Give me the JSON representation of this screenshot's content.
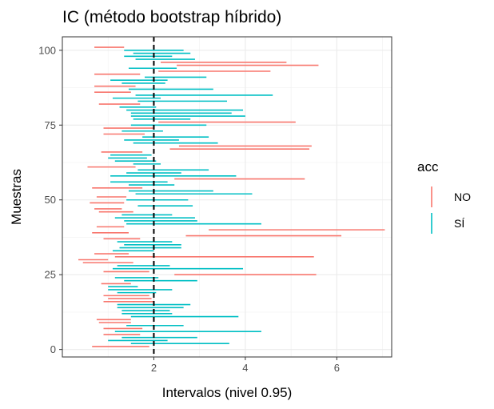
{
  "chart_data": {
    "type": "interval",
    "title": "IC (método bootstrap híbrido)",
    "xlabel": "Intervalos (nivel 0.95)",
    "ylabel": "Muestras",
    "xlim": [
      0.0,
      7.2
    ],
    "ylim": [
      -2.5,
      104.5
    ],
    "x_ticks": [
      2,
      4,
      6
    ],
    "y_ticks": [
      0,
      25,
      50,
      75,
      100
    ],
    "reference_line": 2,
    "grid": true,
    "legend": {
      "title": "acc",
      "position": "right",
      "entries": [
        {
          "label": "NO",
          "color": "#F8766D"
        },
        {
          "label": "SÍ",
          "color": "#00BFC4"
        }
      ]
    },
    "intervals": [
      {
        "y": 1,
        "lo": 0.65,
        "hi": 1.9,
        "acc": "NO"
      },
      {
        "y": 2,
        "lo": 1.5,
        "hi": 3.65,
        "acc": "SÍ"
      },
      {
        "y": 3,
        "lo": 1.0,
        "hi": 2.3,
        "acc": "SÍ"
      },
      {
        "y": 4,
        "lo": 1.3,
        "hi": 2.95,
        "acc": "SÍ"
      },
      {
        "y": 5,
        "lo": 0.9,
        "hi": 1.7,
        "acc": "NO"
      },
      {
        "y": 6,
        "lo": 1.15,
        "hi": 4.35,
        "acc": "SÍ"
      },
      {
        "y": 7,
        "lo": 0.9,
        "hi": 1.75,
        "acc": "NO"
      },
      {
        "y": 8,
        "lo": 1.4,
        "hi": 2.65,
        "acc": "SÍ"
      },
      {
        "y": 9,
        "lo": 0.8,
        "hi": 1.5,
        "acc": "NO"
      },
      {
        "y": 10,
        "lo": 0.75,
        "hi": 1.5,
        "acc": "NO"
      },
      {
        "y": 11,
        "lo": 1.5,
        "hi": 3.85,
        "acc": "SÍ"
      },
      {
        "y": 12,
        "lo": 1.3,
        "hi": 2.4,
        "acc": "SÍ"
      },
      {
        "y": 13,
        "lo": 1.3,
        "hi": 2.35,
        "acc": "SÍ"
      },
      {
        "y": 14,
        "lo": 1.2,
        "hi": 2.65,
        "acc": "SÍ"
      },
      {
        "y": 15,
        "lo": 1.2,
        "hi": 2.8,
        "acc": "SÍ"
      },
      {
        "y": 16,
        "lo": 0.9,
        "hi": 2.0,
        "acc": "NO"
      },
      {
        "y": 17,
        "lo": 1.0,
        "hi": 1.95,
        "acc": "NO"
      },
      {
        "y": 18,
        "lo": 0.9,
        "hi": 1.9,
        "acc": "NO"
      },
      {
        "y": 19,
        "lo": 1.2,
        "hi": 2.05,
        "acc": "SÍ"
      },
      {
        "y": 20,
        "lo": 1.0,
        "hi": 2.4,
        "acc": "SÍ"
      },
      {
        "y": 21,
        "lo": 1.0,
        "hi": 1.65,
        "acc": "SÍ"
      },
      {
        "y": 22,
        "lo": 0.85,
        "hi": 1.5,
        "acc": "NO"
      },
      {
        "y": 23,
        "lo": 1.35,
        "hi": 2.95,
        "acc": "SÍ"
      },
      {
        "y": 24,
        "lo": 1.15,
        "hi": 2.1,
        "acc": "SÍ"
      },
      {
        "y": 25,
        "lo": 2.45,
        "hi": 5.55,
        "acc": "NO"
      },
      {
        "y": 26,
        "lo": 0.9,
        "hi": 1.9,
        "acc": "NO"
      },
      {
        "y": 27,
        "lo": 1.1,
        "hi": 3.95,
        "acc": "SÍ"
      },
      {
        "y": 28,
        "lo": 1.2,
        "hi": 2.35,
        "acc": "SÍ"
      },
      {
        "y": 29,
        "lo": 0.45,
        "hi": 1.55,
        "acc": "NO"
      },
      {
        "y": 30,
        "lo": 0.35,
        "hi": 1.0,
        "acc": "NO"
      },
      {
        "y": 31,
        "lo": 1.15,
        "hi": 5.5,
        "acc": "NO"
      },
      {
        "y": 32,
        "lo": 0.7,
        "hi": 1.45,
        "acc": "NO"
      },
      {
        "y": 33,
        "lo": 1.1,
        "hi": 2.0,
        "acc": "SÍ"
      },
      {
        "y": 34,
        "lo": 1.25,
        "hi": 2.6,
        "acc": "SÍ"
      },
      {
        "y": 35,
        "lo": 1.35,
        "hi": 2.6,
        "acc": "SÍ"
      },
      {
        "y": 36,
        "lo": 1.2,
        "hi": 2.4,
        "acc": "SÍ"
      },
      {
        "y": 37,
        "lo": 0.9,
        "hi": 1.7,
        "acc": "NO"
      },
      {
        "y": 38,
        "lo": 2.7,
        "hi": 6.1,
        "acc": "NO"
      },
      {
        "y": 39,
        "lo": 0.65,
        "hi": 1.45,
        "acc": "NO"
      },
      {
        "y": 40,
        "lo": 3.2,
        "hi": 7.05,
        "acc": "NO"
      },
      {
        "y": 41,
        "lo": 0.75,
        "hi": 1.35,
        "acc": "NO"
      },
      {
        "y": 42,
        "lo": 1.4,
        "hi": 4.35,
        "acc": "SÍ"
      },
      {
        "y": 43,
        "lo": 1.35,
        "hi": 2.95,
        "acc": "SÍ"
      },
      {
        "y": 44,
        "lo": 1.15,
        "hi": 2.9,
        "acc": "SÍ"
      },
      {
        "y": 45,
        "lo": 1.3,
        "hi": 2.4,
        "acc": "SÍ"
      },
      {
        "y": 46,
        "lo": 0.8,
        "hi": 1.55,
        "acc": "NO"
      },
      {
        "y": 47,
        "lo": 0.7,
        "hi": 1.3,
        "acc": "NO"
      },
      {
        "y": 48,
        "lo": 1.65,
        "hi": 2.85,
        "acc": "SÍ"
      },
      {
        "y": 49,
        "lo": 0.6,
        "hi": 1.35,
        "acc": "NO"
      },
      {
        "y": 50,
        "lo": 1.4,
        "hi": 2.75,
        "acc": "SÍ"
      },
      {
        "y": 51,
        "lo": 0.75,
        "hi": 1.4,
        "acc": "NO"
      },
      {
        "y": 52,
        "lo": 1.6,
        "hi": 4.15,
        "acc": "SÍ"
      },
      {
        "y": 53,
        "lo": 1.45,
        "hi": 3.3,
        "acc": "SÍ"
      },
      {
        "y": 54,
        "lo": 0.65,
        "hi": 1.75,
        "acc": "NO"
      },
      {
        "y": 55,
        "lo": 1.45,
        "hi": 2.45,
        "acc": "SÍ"
      },
      {
        "y": 56,
        "lo": 1.05,
        "hi": 2.3,
        "acc": "SÍ"
      },
      {
        "y": 57,
        "lo": 2.45,
        "hi": 5.3,
        "acc": "NO"
      },
      {
        "y": 58,
        "lo": 1.05,
        "hi": 3.8,
        "acc": "SÍ"
      },
      {
        "y": 59,
        "lo": 1.4,
        "hi": 2.6,
        "acc": "SÍ"
      },
      {
        "y": 60,
        "lo": 1.65,
        "hi": 3.2,
        "acc": "SÍ"
      },
      {
        "y": 61,
        "lo": 0.55,
        "hi": 1.6,
        "acc": "NO"
      },
      {
        "y": 62,
        "lo": 1.55,
        "hi": 2.15,
        "acc": "SÍ"
      },
      {
        "y": 63,
        "lo": 1.15,
        "hi": 2.05,
        "acc": "SÍ"
      },
      {
        "y": 64,
        "lo": 1.0,
        "hi": 1.85,
        "acc": "SÍ"
      },
      {
        "y": 65,
        "lo": 1.05,
        "hi": 1.95,
        "acc": "SÍ"
      },
      {
        "y": 66,
        "lo": 0.85,
        "hi": 1.75,
        "acc": "NO"
      },
      {
        "y": 67,
        "lo": 2.35,
        "hi": 5.4,
        "acc": "NO"
      },
      {
        "y": 68,
        "lo": 2.55,
        "hi": 5.45,
        "acc": "NO"
      },
      {
        "y": 69,
        "lo": 1.55,
        "hi": 3.4,
        "acc": "SÍ"
      },
      {
        "y": 70,
        "lo": 1.35,
        "hi": 2.55,
        "acc": "SÍ"
      },
      {
        "y": 71,
        "lo": 1.75,
        "hi": 3.2,
        "acc": "SÍ"
      },
      {
        "y": 72,
        "lo": 0.9,
        "hi": 1.8,
        "acc": "NO"
      },
      {
        "y": 73,
        "lo": 1.3,
        "hi": 2.2,
        "acc": "SÍ"
      },
      {
        "y": 74,
        "lo": 0.9,
        "hi": 2.0,
        "acc": "NO"
      },
      {
        "y": 75,
        "lo": 1.5,
        "hi": 3.15,
        "acc": "SÍ"
      },
      {
        "y": 76,
        "lo": 2.1,
        "hi": 5.1,
        "acc": "NO"
      },
      {
        "y": 77,
        "lo": 1.55,
        "hi": 2.8,
        "acc": "SÍ"
      },
      {
        "y": 78,
        "lo": 1.5,
        "hi": 4.0,
        "acc": "SÍ"
      },
      {
        "y": 79,
        "lo": 1.5,
        "hi": 3.7,
        "acc": "SÍ"
      },
      {
        "y": 80,
        "lo": 1.4,
        "hi": 3.95,
        "acc": "SÍ"
      },
      {
        "y": 81,
        "lo": 1.25,
        "hi": 2.05,
        "acc": "SÍ"
      },
      {
        "y": 82,
        "lo": 0.8,
        "hi": 1.7,
        "acc": "NO"
      },
      {
        "y": 83,
        "lo": 1.65,
        "hi": 3.6,
        "acc": "SÍ"
      },
      {
        "y": 84,
        "lo": 1.1,
        "hi": 2.15,
        "acc": "SÍ"
      },
      {
        "y": 85,
        "lo": 1.6,
        "hi": 4.6,
        "acc": "SÍ"
      },
      {
        "y": 86,
        "lo": 0.7,
        "hi": 1.5,
        "acc": "NO"
      },
      {
        "y": 87,
        "lo": 1.45,
        "hi": 3.3,
        "acc": "SÍ"
      },
      {
        "y": 88,
        "lo": 0.7,
        "hi": 1.6,
        "acc": "NO"
      },
      {
        "y": 89,
        "lo": 1.3,
        "hi": 2.25,
        "acc": "SÍ"
      },
      {
        "y": 90,
        "lo": 1.05,
        "hi": 2.3,
        "acc": "SÍ"
      },
      {
        "y": 91,
        "lo": 1.8,
        "hi": 3.15,
        "acc": "SÍ"
      },
      {
        "y": 92,
        "lo": 0.7,
        "hi": 1.7,
        "acc": "NO"
      },
      {
        "y": 93,
        "lo": 2.1,
        "hi": 4.55,
        "acc": "NO"
      },
      {
        "y": 94,
        "lo": 1.45,
        "hi": 2.5,
        "acc": "SÍ"
      },
      {
        "y": 95,
        "lo": 2.5,
        "hi": 5.6,
        "acc": "NO"
      },
      {
        "y": 96,
        "lo": 2.15,
        "hi": 4.9,
        "acc": "NO"
      },
      {
        "y": 97,
        "lo": 1.6,
        "hi": 2.9,
        "acc": "SÍ"
      },
      {
        "y": 98,
        "lo": 1.35,
        "hi": 2.4,
        "acc": "SÍ"
      },
      {
        "y": 99,
        "lo": 1.55,
        "hi": 2.8,
        "acc": "SÍ"
      },
      {
        "y": 100,
        "lo": 1.35,
        "hi": 2.65,
        "acc": "SÍ"
      },
      {
        "y": 101,
        "lo": 0.7,
        "hi": 1.35,
        "acc": "NO"
      }
    ]
  }
}
